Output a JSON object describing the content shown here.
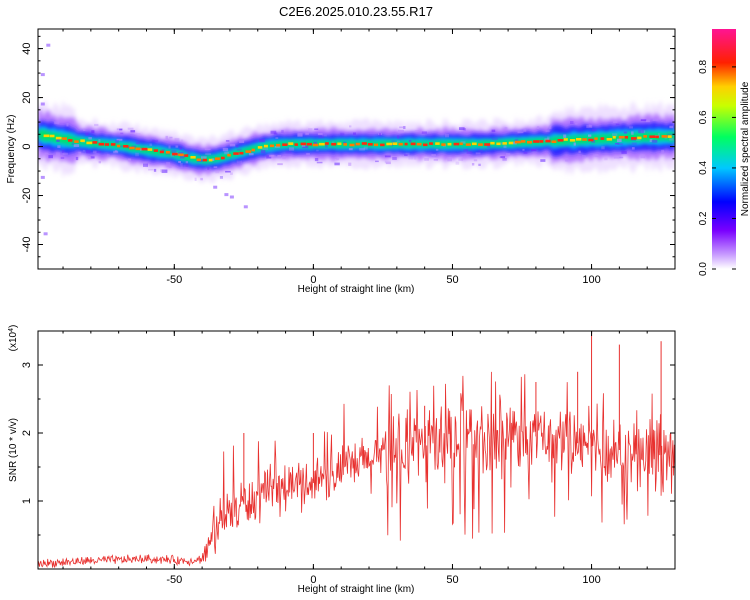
{
  "page_title": "C2E6.2025.010.23.55.R17",
  "chart_data": [
    {
      "type": "heatmap",
      "xlabel": "Height of straight line (km)",
      "ylabel": "Frequency (Hz)",
      "xlim": [
        -99,
        130
      ],
      "ylim": [
        -50,
        48
      ],
      "xticks": [
        -50,
        0,
        50,
        100
      ],
      "yticks": [
        -40,
        -20,
        0,
        20,
        40
      ],
      "colorbar": {
        "label": "Normalized spectral amplitude",
        "range": [
          0,
          0.95
        ],
        "ticks": [
          0.0,
          0.2,
          0.4,
          0.6,
          0.8
        ],
        "colormap": "rainbow (violet-blue-cyan-green-yellow-red-magenta)"
      },
      "ridge": {
        "x": [
          -99,
          -90,
          -80,
          -70,
          -60,
          -50,
          -45,
          -40,
          -35,
          -30,
          -25,
          -20,
          -15,
          -10,
          -5,
          0,
          10,
          20,
          30,
          40,
          50,
          60,
          70,
          80,
          90,
          100,
          110,
          120,
          130
        ],
        "freq": [
          5,
          3,
          1.5,
          0.5,
          -1.5,
          -3,
          -4.5,
          -5.5,
          -5,
          -3.5,
          -2,
          -0.5,
          0.5,
          1,
          1,
          1,
          1,
          1,
          1,
          1,
          1,
          1,
          1.5,
          2,
          2.5,
          3,
          3.5,
          4,
          4
        ]
      }
    },
    {
      "type": "line",
      "xlabel": "Height of straight line (km)",
      "ylabel": "SNR (10 * v/v)",
      "y_multiplier": "(x10^4)",
      "xlim": [
        -99,
        130
      ],
      "ylim": [
        0,
        3.5
      ],
      "xticks": [
        -50,
        0,
        50,
        100
      ],
      "yticks": [
        1,
        2,
        3
      ],
      "color": "#e8312f",
      "envelope": {
        "x": [
          -99,
          -80,
          -60,
          -45,
          -40,
          -38,
          -35,
          -30,
          -25,
          -20,
          -10,
          0,
          10,
          20,
          30,
          40,
          50,
          60,
          70,
          80,
          90,
          100,
          110,
          120,
          130
        ],
        "y": [
          0.08,
          0.12,
          0.15,
          0.12,
          0.15,
          0.3,
          0.6,
          0.85,
          0.95,
          1.05,
          1.2,
          1.3,
          1.45,
          1.6,
          1.75,
          1.85,
          1.9,
          1.95,
          1.95,
          1.95,
          1.9,
          1.8,
          1.75,
          1.7,
          1.65
        ]
      },
      "peaks": [
        {
          "x": -25,
          "y": 2.0
        },
        {
          "x": 0,
          "y": 2.0
        },
        {
          "x": 40,
          "y": 2.4
        },
        {
          "x": 80,
          "y": 2.75
        },
        {
          "x": 95,
          "y": 2.9
        },
        {
          "x": 100,
          "y": 3.5
        },
        {
          "x": 110,
          "y": 3.3
        },
        {
          "x": 125,
          "y": 3.35
        }
      ]
    }
  ]
}
